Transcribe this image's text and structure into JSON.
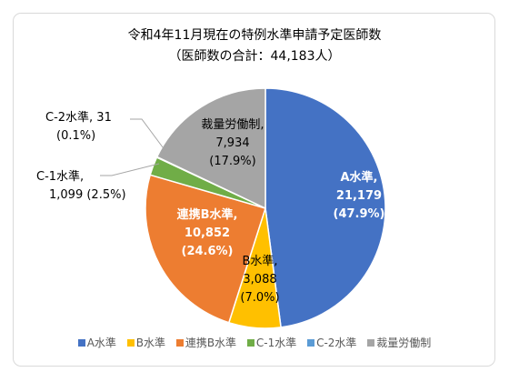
{
  "chart_data": {
    "type": "pie",
    "title": "令和4年11月現在の特例水準申請予定医師数",
    "subtitle": "（医師数の合計：44,183人）",
    "slices": [
      {
        "name": "A水準",
        "value": 21179,
        "value_label": "21,179",
        "percent_label": "(47.9%)",
        "color": "#4472c4"
      },
      {
        "name": "B水準",
        "value": 3088,
        "value_label": "3,088",
        "percent_label": "(7.0%)",
        "color": "#ffc000"
      },
      {
        "name": "連携B水準",
        "value": 10852,
        "value_label": "10,852",
        "percent_label": "(24.6%)",
        "color": "#ed7d31"
      },
      {
        "name": "C-1水準",
        "value": 1099,
        "value_label": "1,099",
        "percent_label": "(2.5%)",
        "color": "#70ad47"
      },
      {
        "name": "C-2水準",
        "value": 31,
        "value_label": "31",
        "percent_label": "(0.1%)",
        "color": "#5b9bd5"
      },
      {
        "name": "裁量労働制",
        "value": 7934,
        "value_label": "7,934",
        "percent_label": "(17.9%)",
        "color": "#a5a5a5"
      }
    ],
    "legend_position": "bottom"
  },
  "labels": {
    "a": {
      "line1": "A水準,",
      "line2": "21,179",
      "line3": "(47.9%)"
    },
    "b": {
      "line1": "B水準,",
      "line2": "3,088",
      "line3": "(7.0%)"
    },
    "r": {
      "line1": "連携B水準,",
      "line2": "10,852",
      "line3": "(24.6%)"
    },
    "c1": {
      "line1": "C-1水準,",
      "line2": "1,099 (2.5%)"
    },
    "c2": {
      "line1": "C-2水準, 31",
      "line2": "(0.1%)"
    },
    "s": {
      "line1": "裁量労働制,",
      "line2": "7,934",
      "line3": "(17.9%)"
    }
  }
}
